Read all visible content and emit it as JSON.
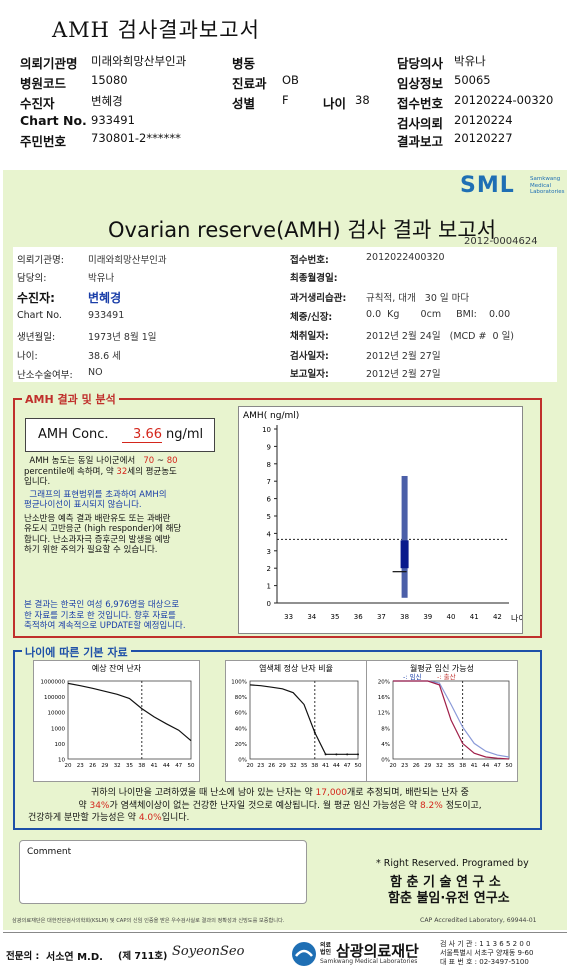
{
  "header": {
    "title": "AMH 검사결과보고서",
    "rows": [
      {
        "l1": "의뢰기관명",
        "v1": "미래와희망산부인과",
        "l2": "병동",
        "v2": "",
        "l3": "담당의사",
        "v3": "박유나"
      },
      {
        "l1": "병원코드",
        "v1": "15080",
        "l2": "진료과",
        "v2": "OB",
        "l3": "임상정보",
        "v3": "50065"
      },
      {
        "l1": "수진자",
        "v1": "변혜경",
        "l2": "성별",
        "v2": "F",
        "l2b": "나이",
        "v2b": "38",
        "l3": "접수번호",
        "v3": "20120224-00320"
      },
      {
        "l1": "Chart No.",
        "v1": "933491",
        "l2": "",
        "v2": "",
        "l3": "검사의뢰",
        "v3": "20120224"
      },
      {
        "l1": "주민번호",
        "v1": "730801-2******",
        "l2": "",
        "v2": "",
        "l3": "결과보고",
        "v3": "20120227"
      }
    ]
  },
  "report": {
    "logo": "SML",
    "logo_sub": [
      "Samkwang",
      "Medical",
      "Laboratories"
    ],
    "title": "Ovarian reserve(AMH) 검사 결과 보고서",
    "report_no": "2012-0004624",
    "left_info": [
      {
        "label": "의뢰기관명:",
        "value": "미래와희망산부인과"
      },
      {
        "label": "담당의:",
        "value": "박유나"
      },
      {
        "label": "수진자:",
        "value": "변혜경"
      },
      {
        "label": "Chart No.",
        "value": "933491"
      },
      {
        "label": "생년월일:",
        "value": "1973년 8월 1일"
      },
      {
        "label": "나이:",
        "value": "38.6 세"
      },
      {
        "label": "난소수술여부:",
        "value": "NO"
      }
    ],
    "right_info": [
      {
        "label": "접수번호:",
        "value": "2012022400320"
      },
      {
        "label": "최종월경일:",
        "value": ""
      },
      {
        "label": "과거생리습관:",
        "value": "규칙적, 대개   30 일 마다"
      },
      {
        "label": "체중/신장:",
        "value": "0.0  Kg       0cm     BMI:    0.00"
      },
      {
        "label": "채취일자:",
        "value": "2012년 2월 24일   (MCD #  0 일)"
      },
      {
        "label": "검사일자:",
        "value": "2012년 2월 27일"
      },
      {
        "label": "보고일자:",
        "value": "2012년 2월 27일"
      }
    ],
    "amh_section_title": "AMH 결과 및 분석",
    "amh_label": "AMH Conc.",
    "amh_value": "3.66",
    "amh_unit": "ng/ml",
    "analysis": {
      "p1a": "AMH 농도는 동일 나이군에서",
      "p1b": "70",
      "p1c": "~",
      "p1d": "80",
      "p1e": "percentile에 속하며,  약",
      "p1f": "32",
      "p1g": "세의 평균농도",
      "p1h": "입니다.",
      "p2": "그래프의 표현범위를 초과하여 AMH의",
      "p2b": "평균나이선이 표시되지 않습니다.",
      "p3": "난소반응 예측 결과 배란유도 또는 과배란",
      "p3b": "유도시 고반응군 (high responder)에 해당",
      "p3c": "합니다. 난소과자극 증후군의 발생을 예방",
      "p3d": "하기 위한 주의가 필요할 수 있습니다.",
      "p4": "본 결과는 한국인 여성 6,976명을 대상으로",
      "p4b": "한 자료를 기초로 한 것입니다. 향후 자료를",
      "p4c": "축적하여 계속적으로 UPDATE할 예정입니다."
    },
    "age_section_title": "나이에 따른 기본 자료",
    "summary": {
      "s1": "귀하의 나이만을 고려하였을 때 난소에 남아 있는 난자는 약",
      "s1v": "17,000",
      "s1b": "개로 추정되며, 배란되는 난자 중",
      "s2": "약",
      "s2v": "34%",
      "s2b": "가 염색체이상이 없는 건강한 난자일 것으로 예상됩니다. 월 평균 임신 가능성은 약",
      "s2v2": "8.2%",
      "s2c": "정도이고,",
      "s3": "건강하게 분만할 가능성은 약",
      "s3v": "4.0%",
      "s3b": "입니다."
    },
    "comment_label": "Comment",
    "rights": "* Right Reserved. Programed by",
    "org1": "함 춘  기 술  연 구 소",
    "org2": "함춘 불임·유전 연구소",
    "footer_note": "삼광의료재단은 대한진단검사의학회(KSLM) 및 CAP의 신임 인증을 받은 우수검사실로 결과의 정확성과 신빙도를 보증합니다.",
    "cap": "CAP  Accredited  Laboratory,  69944-01"
  },
  "bottom": {
    "doctor_label": "전문의 :",
    "doctor_name": "서소연 M.D.",
    "doctor_no": "(제 711호)",
    "signature": "SoyeonSeo",
    "foundation_tag": [
      "의료",
      "법인"
    ],
    "foundation": "삼광의료재단",
    "foundation_sub": "Samkwang Medical Laboratories",
    "biz_no": "검 사 기 관 : 1 1 3 6 5 2 0 0",
    "address": "서울특별시 서초구 양재동 9-60",
    "phone": "대 표 번 호 : 02-3497-5100"
  },
  "chart_data": [
    {
      "type": "scatter",
      "title": "",
      "ylabel": "AMH( ng/ml)",
      "xlabel": "나이",
      "x": [
        33,
        34,
        35,
        36,
        37,
        38,
        39,
        40,
        41,
        42
      ],
      "ylim": [
        0,
        10
      ],
      "yticks": [
        0,
        1,
        2,
        3,
        4,
        5,
        6,
        7,
        8,
        9,
        10
      ],
      "reference_line_y": 3.66,
      "patient_age": 38,
      "patient_amh": 3.66,
      "range_bar": {
        "x": 38,
        "low": 0.3,
        "high": 7.3
      },
      "box": {
        "x": 38,
        "low": 2.0,
        "high": 3.6
      },
      "median": 1.8
    },
    {
      "type": "line",
      "title": "예상 잔여 난자",
      "x": [
        20,
        23,
        26,
        29,
        32,
        35,
        38,
        41,
        44,
        47,
        50
      ],
      "ylim": [
        10,
        1000000
      ],
      "log_y": true,
      "yticks": [
        "1000000",
        "100000",
        "10000",
        "1000",
        "100",
        "10"
      ],
      "values": [
        700000,
        500000,
        340000,
        220000,
        140000,
        75000,
        17000,
        5000,
        1800,
        700,
        150
      ],
      "marker_x": 38
    },
    {
      "type": "line",
      "title": "염색체 정상 난자 비율",
      "x": [
        20,
        23,
        26,
        29,
        32,
        35,
        38,
        41,
        44,
        47,
        50
      ],
      "ylim": [
        0,
        100
      ],
      "yticks": [
        "100%",
        "80%",
        "60%",
        "40%",
        "20%",
        "0%"
      ],
      "values": [
        95,
        94,
        92,
        90,
        85,
        70,
        34,
        6,
        6,
        6,
        6
      ],
      "marker_x": 38
    },
    {
      "type": "line",
      "title": "월평균 임신 가능성",
      "legend": [
        "-: 임신",
        "-: 출산"
      ],
      "x": [
        20,
        23,
        26,
        29,
        32,
        35,
        38,
        41,
        44,
        47,
        50
      ],
      "ylim": [
        0,
        20
      ],
      "yticks": [
        "20%",
        "16%",
        "12%",
        "8%",
        "4%",
        "0%"
      ],
      "series": [
        {
          "name": "-: 임신",
          "values": [
            20,
            20,
            20,
            20,
            19.5,
            14,
            8.2,
            4,
            2,
            1,
            0.5
          ]
        },
        {
          "name": "-: 출산",
          "values": [
            20,
            20,
            20,
            20,
            19,
            10,
            4,
            1.5,
            0.5,
            0.2,
            0
          ]
        }
      ],
      "marker_x": 38
    }
  ]
}
